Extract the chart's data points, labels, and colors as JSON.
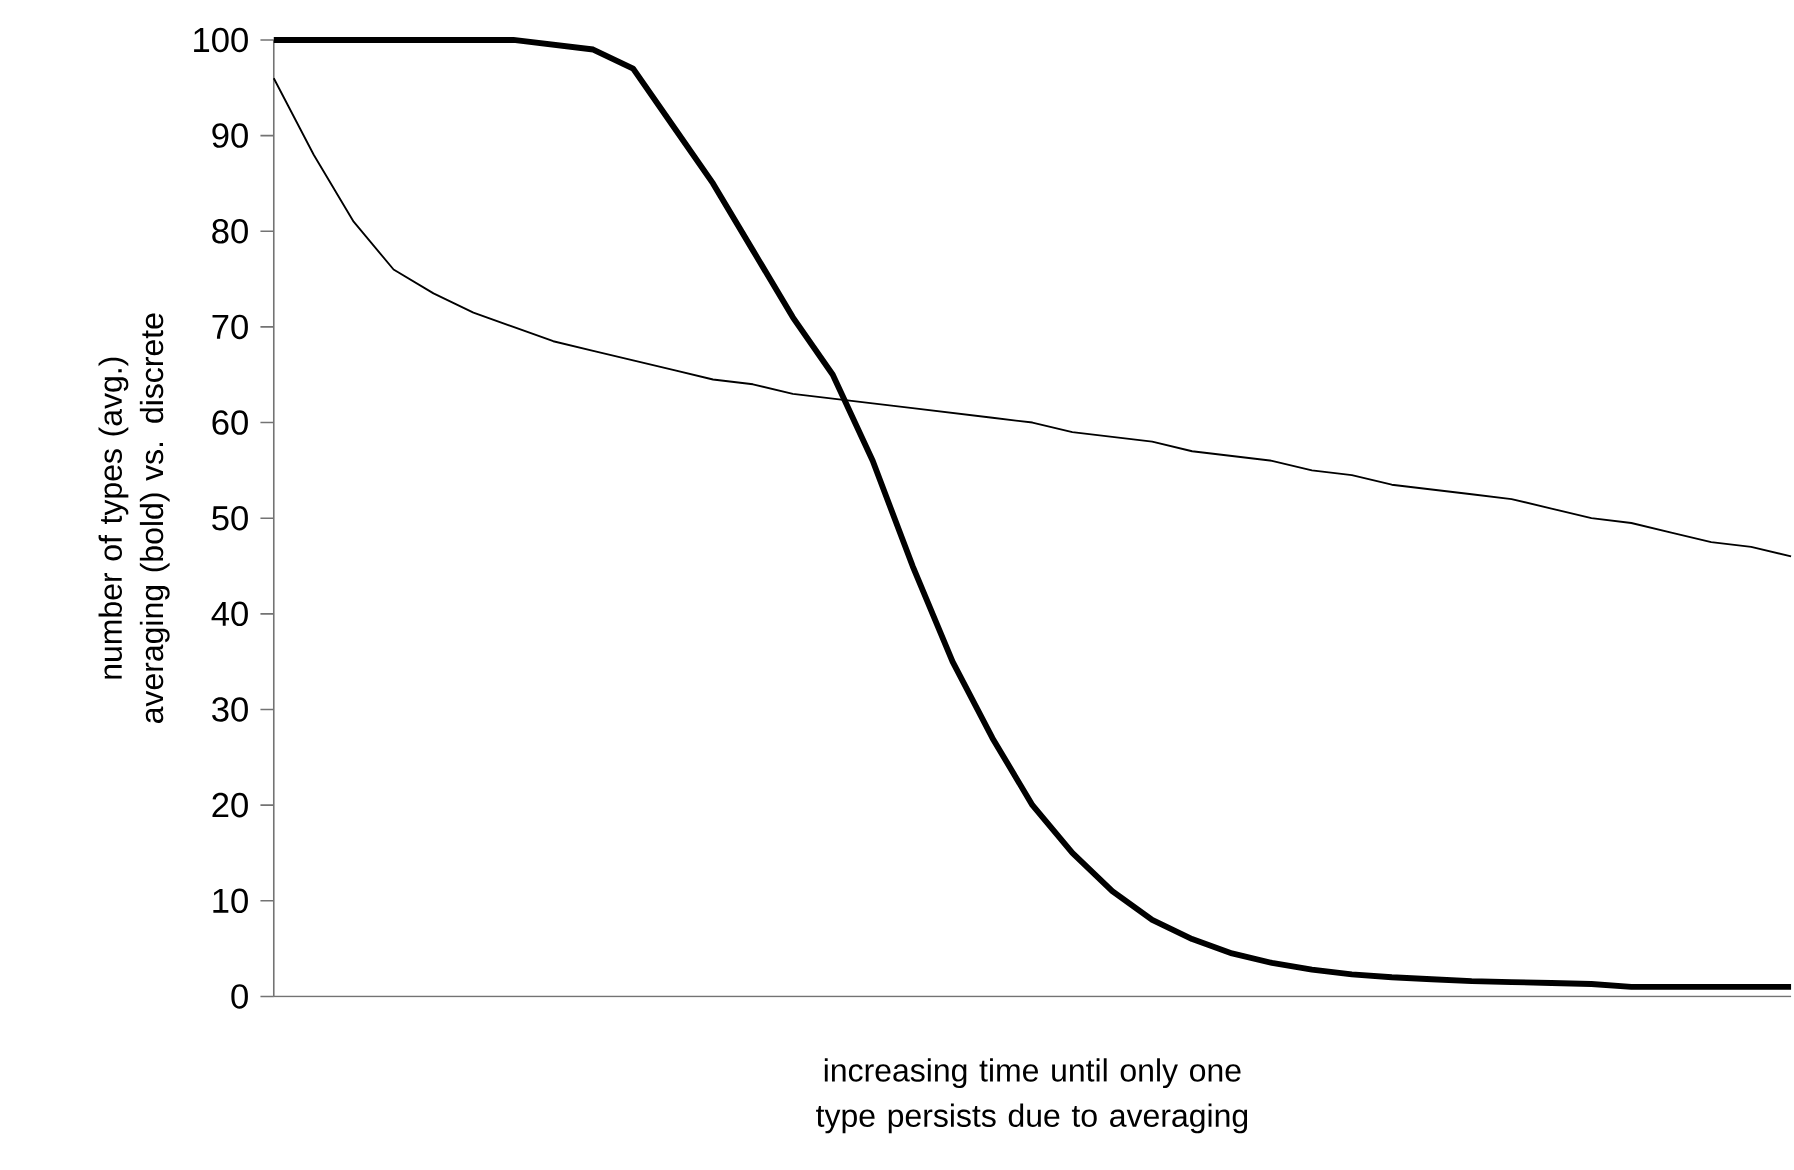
{
  "chart_data": {
    "type": "line",
    "xlabel": "increasing time until only one type persists due to averaging",
    "ylabel": "number of types (avg.) averaging (bold) vs. discrete",
    "categories": [
      null,
      null,
      null,
      null,
      null,
      null,
      null,
      null,
      null,
      null,
      null,
      null,
      null,
      null,
      null,
      null,
      null,
      null,
      null,
      null,
      null,
      null,
      null,
      null,
      null,
      null,
      null,
      null,
      null,
      null,
      null,
      null,
      null,
      null,
      null,
      null,
      null,
      null,
      null
    ],
    "series": [
      {
        "color": "#000000",
        "values": [
          100,
          100,
          100,
          100,
          100,
          100,
          100,
          99.5,
          99,
          97,
          91,
          85,
          78,
          71,
          65,
          56,
          45,
          35,
          27,
          20,
          15,
          11,
          8,
          6,
          4.5,
          3.5,
          2.8,
          2.3,
          2,
          1.8,
          1.6,
          1.5,
          1.4,
          1.3,
          1,
          1,
          1,
          1,
          1
        ]
      },
      {
        "color": "#000000",
        "values": [
          96,
          88,
          81,
          76,
          73.5,
          71.5,
          70,
          68.5,
          67.5,
          66.5,
          65.5,
          64.5,
          64,
          63,
          62.5,
          62,
          61.5,
          61,
          60.5,
          60,
          59,
          58.5,
          58,
          57,
          56.5,
          56,
          55,
          54.5,
          53.5,
          53,
          52.5,
          52,
          51,
          50,
          49.5,
          48.5,
          47.5,
          47,
          46
        ]
      }
    ],
    "ylim": [
      0,
      100
    ],
    "yticks": [
      0,
      10,
      20,
      30,
      40,
      50,
      60,
      70,
      80,
      90,
      100
    ],
    "tick_labels": "y",
    "grid": false,
    "marker": "none",
    "line_style": "solid"
  }
}
